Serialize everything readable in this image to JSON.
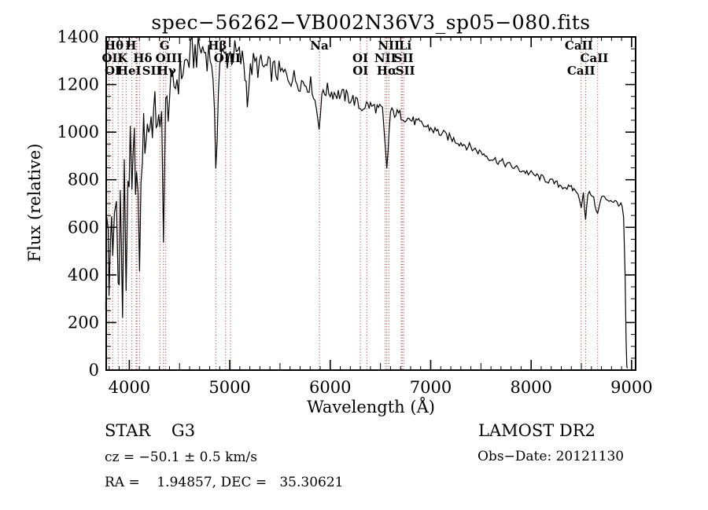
{
  "title": "spec−56262−VB002N36V3_sp05−080.fits",
  "annotations": {
    "class_label": "STAR    G3",
    "survey": "LAMOST DR2",
    "cz": "cz = −50.1 ± 0.5 km/s",
    "obs_date": "Obs−Date: 20121130",
    "ra_dec": "RA =    1.94857, DEC =   35.30621"
  },
  "chart_data": {
    "type": "line",
    "title": "spec−56262−VB002N36V3_sp05−080.fits",
    "xlabel": "Wavelength (Å)",
    "ylabel": "Flux (relative)",
    "xlim": [
      3770,
      9040
    ],
    "ylim": [
      0,
      1400
    ],
    "xticks": [
      4000,
      5000,
      6000,
      7000,
      8000,
      9000
    ],
    "yticks": [
      0,
      200,
      400,
      600,
      800,
      1000,
      1200,
      1400
    ],
    "x_minor_step": 100,
    "y_minor_step": 50,
    "grid": false,
    "legend": "none",
    "line_color": "#000000",
    "marker_line_color": "#993333",
    "spectral_lines": [
      {
        "wavelength": 3727,
        "label": "OII",
        "row": 2,
        "dx": 0
      },
      {
        "wavelength": 3731,
        "label": "OI",
        "row": 3,
        "dx": 0
      },
      {
        "wavelength": 3798,
        "label": "Hθ",
        "row": 1,
        "dx": 2
      },
      {
        "wavelength": 3835,
        "label": "",
        "row": 0,
        "dx": 0
      },
      {
        "wavelength": 3889,
        "label": "HeI",
        "row": 3,
        "dx": 14
      },
      {
        "wavelength": 3933,
        "label": "K",
        "row": 2,
        "dx": 0
      },
      {
        "wavelength": 3968,
        "label": "H",
        "row": 1,
        "dx": 6
      },
      {
        "wavelength": 4026,
        "label": "",
        "row": 0,
        "dx": 0
      },
      {
        "wavelength": 4068,
        "label": "SII",
        "row": 3,
        "dx": 20
      },
      {
        "wavelength": 4076,
        "label": "",
        "row": 0,
        "dx": 0
      },
      {
        "wavelength": 4102,
        "label": "Hδ",
        "row": 2,
        "dx": 4
      },
      {
        "wavelength": 4305,
        "label": "G",
        "row": 1,
        "dx": 6
      },
      {
        "wavelength": 4340,
        "label": "Hγ",
        "row": 3,
        "dx": 4
      },
      {
        "wavelength": 4363,
        "label": "OIII",
        "row": 2,
        "dx": 4
      },
      {
        "wavelength": 4861,
        "label": "Hβ",
        "row": 1,
        "dx": 2
      },
      {
        "wavelength": 4959,
        "label": "OIII",
        "row": 2,
        "dx": 2
      },
      {
        "wavelength": 5007,
        "label": "",
        "row": 0,
        "dx": 0
      },
      {
        "wavelength": 5892,
        "label": "Na",
        "row": 1,
        "dx": 0
      },
      {
        "wavelength": 6300,
        "label": "OI",
        "row": 2,
        "dx": 0
      },
      {
        "wavelength": 6364,
        "label": "OI",
        "row": 3,
        "dx": -8
      },
      {
        "wavelength": 6548,
        "label": "NII",
        "row": 2,
        "dx": 0
      },
      {
        "wavelength": 6563,
        "label": "Hα",
        "row": 3,
        "dx": 0
      },
      {
        "wavelength": 6583,
        "label": "NII",
        "row": 1,
        "dx": 0
      },
      {
        "wavelength": 6707,
        "label": "Li",
        "row": 1,
        "dx": 5
      },
      {
        "wavelength": 6716,
        "label": "SII",
        "row": 2,
        "dx": 2
      },
      {
        "wavelength": 6731,
        "label": "SII",
        "row": 3,
        "dx": 2
      },
      {
        "wavelength": 8498,
        "label": "CaII",
        "row": 1,
        "dx": -3
      },
      {
        "wavelength": 8542,
        "label": "CaII",
        "row": 2,
        "dx": 11
      },
      {
        "wavelength": 8662,
        "label": "CaII",
        "row": 3,
        "dx": -21
      }
    ],
    "spectrum_points_format": [
      "wavelength_angstrom",
      "flux_relative",
      "noise_halfamp"
    ],
    "spectrum": [
      [
        3765,
        420,
        260
      ],
      [
        3775,
        520,
        260
      ],
      [
        3790,
        560,
        240
      ],
      [
        3798,
        330,
        200
      ],
      [
        3812,
        640,
        220
      ],
      [
        3835,
        380,
        200
      ],
      [
        3852,
        660,
        220
      ],
      [
        3872,
        700,
        220
      ],
      [
        3889,
        360,
        180
      ],
      [
        3910,
        720,
        200
      ],
      [
        3933,
        250,
        150
      ],
      [
        3950,
        760,
        180
      ],
      [
        3968,
        380,
        150
      ],
      [
        3986,
        820,
        160
      ],
      [
        4010,
        880,
        150
      ],
      [
        4026,
        700,
        140
      ],
      [
        4050,
        920,
        140
      ],
      [
        4072,
        800,
        130
      ],
      [
        4102,
        480,
        120
      ],
      [
        4130,
        960,
        130
      ],
      [
        4180,
        1020,
        120
      ],
      [
        4230,
        1060,
        110
      ],
      [
        4280,
        1080,
        110
      ],
      [
        4305,
        950,
        100
      ],
      [
        4322,
        1060,
        100
      ],
      [
        4340,
        620,
        100
      ],
      [
        4362,
        1080,
        100
      ],
      [
        4400,
        1150,
        100
      ],
      [
        4460,
        1210,
        90
      ],
      [
        4520,
        1260,
        90
      ],
      [
        4580,
        1300,
        85
      ],
      [
        4640,
        1330,
        85
      ],
      [
        4700,
        1350,
        80
      ],
      [
        4760,
        1340,
        80
      ],
      [
        4820,
        1320,
        80
      ],
      [
        4861,
        880,
        70
      ],
      [
        4900,
        1300,
        75
      ],
      [
        4960,
        1320,
        75
      ],
      [
        5020,
        1330,
        70
      ],
      [
        5080,
        1320,
        70
      ],
      [
        5140,
        1290,
        65
      ],
      [
        5175,
        1160,
        60
      ],
      [
        5220,
        1280,
        65
      ],
      [
        5280,
        1280,
        60
      ],
      [
        5340,
        1270,
        55
      ],
      [
        5400,
        1265,
        55
      ],
      [
        5460,
        1255,
        50
      ],
      [
        5520,
        1245,
        50
      ],
      [
        5580,
        1235,
        45
      ],
      [
        5640,
        1225,
        45
      ],
      [
        5700,
        1215,
        45
      ],
      [
        5760,
        1205,
        40
      ],
      [
        5820,
        1195,
        40
      ],
      [
        5890,
        1035,
        30
      ],
      [
        5930,
        1180,
        35
      ],
      [
        6000,
        1170,
        35
      ],
      [
        6080,
        1160,
        30
      ],
      [
        6160,
        1150,
        30
      ],
      [
        6240,
        1135,
        30
      ],
      [
        6300,
        1100,
        25
      ],
      [
        6360,
        1115,
        25
      ],
      [
        6440,
        1105,
        25
      ],
      [
        6520,
        1090,
        25
      ],
      [
        6563,
        845,
        20
      ],
      [
        6600,
        1085,
        22
      ],
      [
        6680,
        1075,
        22
      ],
      [
        6760,
        1060,
        22
      ],
      [
        6840,
        1045,
        20
      ],
      [
        6920,
        1030,
        20
      ],
      [
        7000,
        1015,
        20
      ],
      [
        7100,
        995,
        20
      ],
      [
        7200,
        975,
        18
      ],
      [
        7300,
        955,
        18
      ],
      [
        7400,
        935,
        18
      ],
      [
        7500,
        915,
        16
      ],
      [
        7600,
        890,
        16
      ],
      [
        7700,
        875,
        16
      ],
      [
        7800,
        858,
        15
      ],
      [
        7900,
        840,
        15
      ],
      [
        8000,
        825,
        15
      ],
      [
        8100,
        808,
        15
      ],
      [
        8200,
        792,
        14
      ],
      [
        8300,
        775,
        14
      ],
      [
        8400,
        762,
        14
      ],
      [
        8450,
        755,
        12
      ],
      [
        8498,
        690,
        10
      ],
      [
        8520,
        748,
        12
      ],
      [
        8542,
        628,
        10
      ],
      [
        8565,
        742,
        12
      ],
      [
        8610,
        738,
        12
      ],
      [
        8662,
        655,
        10
      ],
      [
        8700,
        728,
        12
      ],
      [
        8760,
        718,
        12
      ],
      [
        8820,
        710,
        12
      ],
      [
        8870,
        700,
        12
      ],
      [
        8905,
        688,
        10
      ],
      [
        8920,
        640,
        8
      ],
      [
        8935,
        400,
        5
      ],
      [
        8945,
        120,
        4
      ],
      [
        8952,
        15,
        3
      ],
      [
        8958,
        8,
        2
      ]
    ]
  }
}
